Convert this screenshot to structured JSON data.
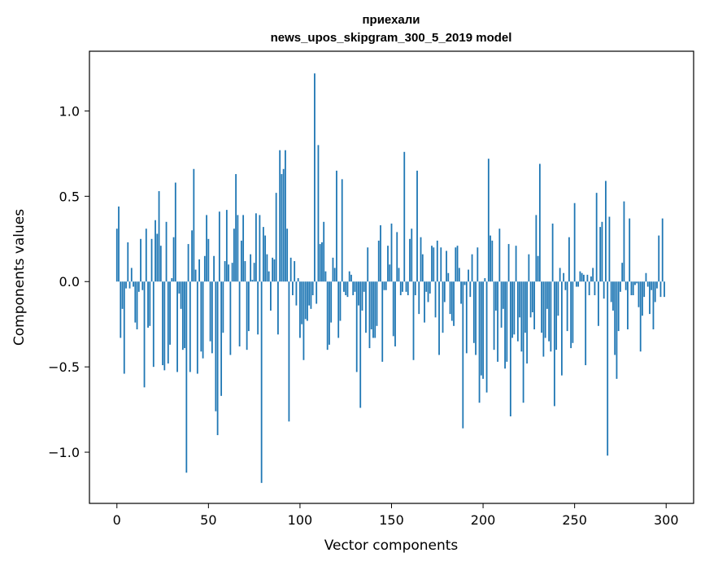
{
  "chart_data": {
    "type": "bar",
    "title": "приехали",
    "subtitle": "news_upos_skipgram_300_5_2019 model",
    "xlabel": "Vector components",
    "ylabel": "Components values",
    "xlim": [
      -15,
      315
    ],
    "ylim": [
      -1.3,
      1.35
    ],
    "xticks": [
      0,
      50,
      100,
      150,
      200,
      250,
      300
    ],
    "xtick_labels": [
      "0",
      "50",
      "100",
      "150",
      "200",
      "250",
      "300"
    ],
    "yticks": [
      -1.0,
      -0.5,
      0.0,
      0.5,
      1.0
    ],
    "ytick_labels": [
      "−1.0",
      "−0.5",
      "0.0",
      "0.5",
      "1.0"
    ],
    "grid": false,
    "bar_color": "#1f77b4",
    "values": [
      0.31,
      0.44,
      -0.33,
      -0.16,
      -0.54,
      -0.04,
      0.23,
      -0.04,
      0.08,
      -0.03,
      -0.24,
      -0.28,
      -0.06,
      0.25,
      -0.05,
      -0.62,
      0.31,
      -0.27,
      -0.26,
      0.25,
      -0.5,
      0.36,
      0.28,
      0.53,
      0.21,
      -0.49,
      -0.52,
      0.35,
      -0.48,
      -0.37,
      0.02,
      0.26,
      0.58,
      -0.53,
      -0.07,
      -0.16,
      -0.4,
      -0.39,
      -1.12,
      0.22,
      -0.53,
      0.3,
      0.66,
      0.07,
      -0.54,
      0.13,
      -0.41,
      -0.45,
      0.15,
      0.39,
      0.25,
      -0.35,
      -0.42,
      0.15,
      -0.76,
      -0.9,
      0.41,
      -0.67,
      -0.3,
      0.12,
      0.42,
      0.1,
      -0.43,
      0.11,
      0.31,
      0.63,
      0.39,
      -0.38,
      0.24,
      0.39,
      0.12,
      -0.4,
      -0.29,
      0.16,
      0.01,
      0.11,
      0.4,
      -0.31,
      0.39,
      -1.18,
      0.32,
      0.27,
      0.16,
      0.06,
      -0.17,
      0.14,
      0.13,
      0.52,
      -0.31,
      0.77,
      0.63,
      0.66,
      0.77,
      0.31,
      -0.82,
      0.14,
      -0.08,
      0.12,
      -0.14,
      0.02,
      -0.33,
      -0.25,
      -0.46,
      -0.22,
      -0.23,
      -0.14,
      -0.16,
      -0.08,
      1.22,
      -0.13,
      0.8,
      0.22,
      0.23,
      0.35,
      0.06,
      -0.4,
      -0.37,
      -0.24,
      0.14,
      0.08,
      0.65,
      -0.33,
      -0.23,
      0.6,
      -0.06,
      -0.08,
      -0.09,
      0.06,
      0.04,
      -0.08,
      -0.06,
      -0.53,
      -0.14,
      -0.74,
      -0.17,
      -0.06,
      -0.3,
      0.2,
      -0.39,
      -0.28,
      -0.33,
      -0.33,
      -0.26,
      0.24,
      0.33,
      -0.47,
      -0.05,
      -0.05,
      0.21,
      0.1,
      0.34,
      -0.32,
      -0.38,
      0.29,
      0.08,
      -0.08,
      -0.06,
      0.76,
      -0.06,
      -0.08,
      0.25,
      0.31,
      -0.46,
      -0.08,
      0.65,
      -0.19,
      0.26,
      0.16,
      -0.24,
      -0.06,
      -0.12,
      -0.07,
      0.21,
      0.2,
      -0.21,
      0.24,
      -0.43,
      0.2,
      -0.3,
      -0.12,
      0.18,
      0.05,
      -0.19,
      -0.23,
      -0.26,
      0.2,
      0.21,
      0.08,
      -0.13,
      -0.86,
      -0.02,
      -0.42,
      0.07,
      -0.09,
      0.16,
      -0.36,
      -0.43,
      0.2,
      -0.71,
      -0.55,
      -0.57,
      0.02,
      -0.65,
      0.72,
      0.27,
      0.24,
      -0.4,
      -0.17,
      -0.47,
      0.31,
      -0.27,
      -0.16,
      -0.51,
      -0.47,
      0.22,
      -0.79,
      -0.33,
      -0.31,
      0.21,
      -0.35,
      -0.21,
      -0.41,
      -0.71,
      -0.3,
      -0.48,
      0.16,
      -0.21,
      -0.18,
      -0.28,
      0.39,
      0.15,
      0.69,
      -0.3,
      -0.44,
      -0.33,
      -0.16,
      -0.35,
      -0.41,
      0.34,
      -0.73,
      -0.4,
      -0.2,
      0.08,
      -0.55,
      0.05,
      -0.05,
      -0.29,
      0.26,
      -0.39,
      -0.36,
      0.46,
      -0.03,
      -0.03,
      0.06,
      0.05,
      0.04,
      -0.49,
      0.04,
      -0.08,
      0.03,
      0.08,
      -0.08,
      0.52,
      -0.26,
      0.32,
      0.35,
      -0.1,
      0.59,
      -1.02,
      0.38,
      -0.12,
      -0.17,
      -0.43,
      -0.57,
      -0.29,
      -0.06,
      0.11,
      0.47,
      -0.05,
      -0.28,
      0.37,
      -0.08,
      -0.08,
      -0.02,
      -0.01,
      -0.15,
      -0.41,
      -0.2,
      -0.09,
      0.05,
      -0.03,
      -0.19,
      -0.05,
      -0.28,
      -0.12,
      -0.04,
      0.27,
      -0.09,
      0.37,
      -0.09
    ]
  }
}
